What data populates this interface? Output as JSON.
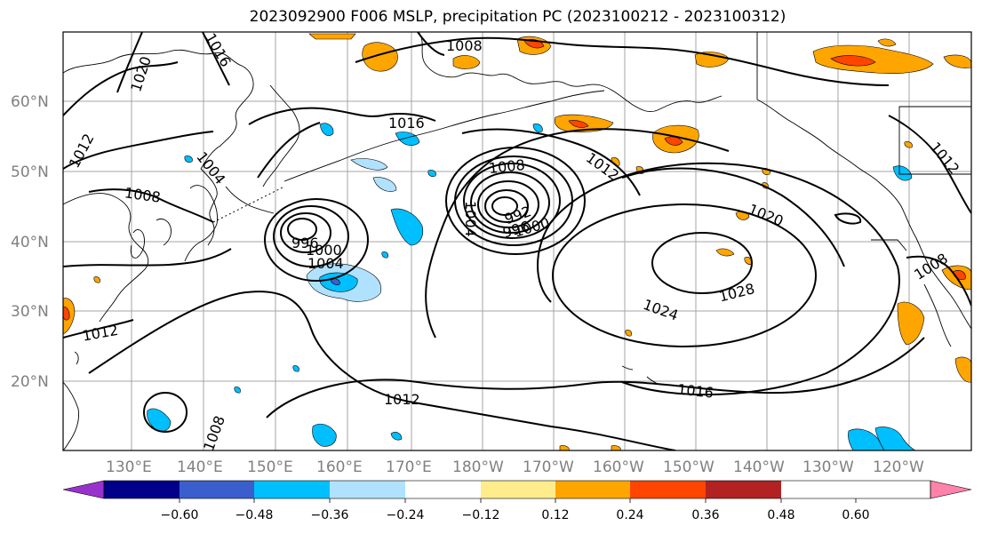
{
  "title": "2023092900 F006 MSLP, precipitation PC (2023100212 - 2023100312)",
  "latitude_labels": [
    "60°N",
    "50°N",
    "40°N",
    "30°N",
    "20°N"
  ],
  "longitude_labels": [
    "130°E",
    "140°E",
    "150°E",
    "160°E",
    "170°E",
    "180°W",
    "170°W",
    "160°W",
    "150°W",
    "140°W",
    "130°W",
    "120°W"
  ],
  "isobar_labels": {
    "p1008_north": "1008",
    "p1016_west": "1016",
    "p1020_nw": "1020",
    "p1012_w": "1012",
    "p1004_japan": "1004",
    "p1008_japan": "1008",
    "p1016_mid": "1016",
    "p1008_low": "1008",
    "p1012_low": "1012",
    "p1004_low": "1004",
    "p992_low": "992",
    "p996_low": "996",
    "p1000_low": "1000",
    "p1004_low2": "1004",
    "p996_low2": "996",
    "p1020_high": "1020",
    "p1028_high": "1028",
    "p1024_high": "1024",
    "p1016_south": "1016",
    "p1012_south": "1012",
    "p1012_sw": "1012",
    "p1008_sw": "1008",
    "p1012_ne": "1012",
    "p1008_east": "1008"
  },
  "colorbar": {
    "ticks": [
      "−0.60",
      "−0.48",
      "−0.36",
      "−0.24",
      "−0.12",
      "0.12",
      "0.24",
      "0.36",
      "0.48",
      "0.60"
    ],
    "colors": [
      "#9932cc",
      "#00008b",
      "#3a5fcd",
      "#00bfff",
      "#b0e2ff",
      "#ffffff",
      "#ffec8b",
      "#ffa500",
      "#ff4500",
      "#b22222",
      "#ff82ab"
    ]
  }
}
